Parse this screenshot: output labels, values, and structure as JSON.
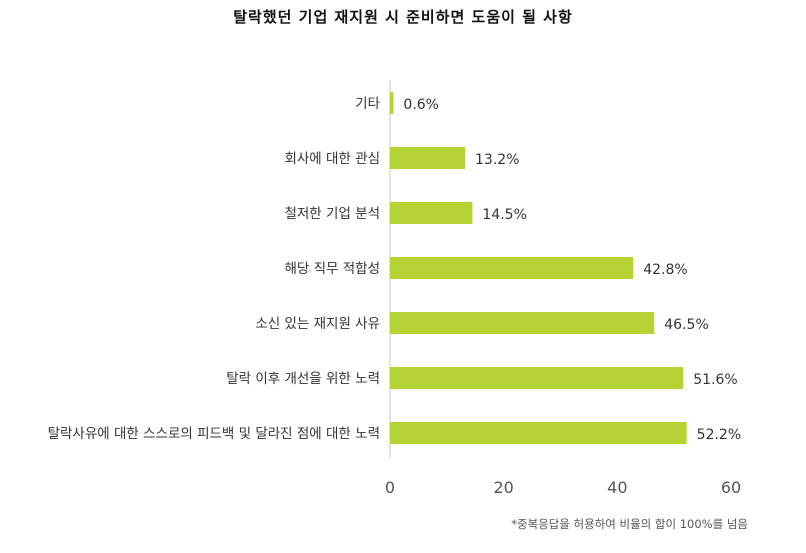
{
  "chart_data": {
    "type": "bar",
    "orientation": "horizontal",
    "title": "탈락했던 기업 재지원 시 준비하면 도움이 될 사항",
    "categories": [
      "기타",
      "회사에 대한 관심",
      "철저한 기업 분석",
      "해당 직무 적합성",
      "소신 있는 재지원 사유",
      "탈락 이후 개선을 위한 노력",
      "탈락사유에 대한 스스로의 피드백 및 달라진 점에 대한 노력"
    ],
    "values": [
      0.6,
      13.2,
      14.5,
      42.8,
      46.5,
      51.6,
      52.2
    ],
    "value_labels": [
      "0.6%",
      "13.2%",
      "14.5%",
      "42.8%",
      "46.5%",
      "51.6%",
      "52.2%"
    ],
    "xlim": [
      0,
      60
    ],
    "xticks": [
      "0",
      "20",
      "40",
      "60"
    ],
    "bar_color": "#b5d334",
    "grid": false
  },
  "footnote": "*중복응답을 허용하여 비율의 합이 100%를 넘음"
}
